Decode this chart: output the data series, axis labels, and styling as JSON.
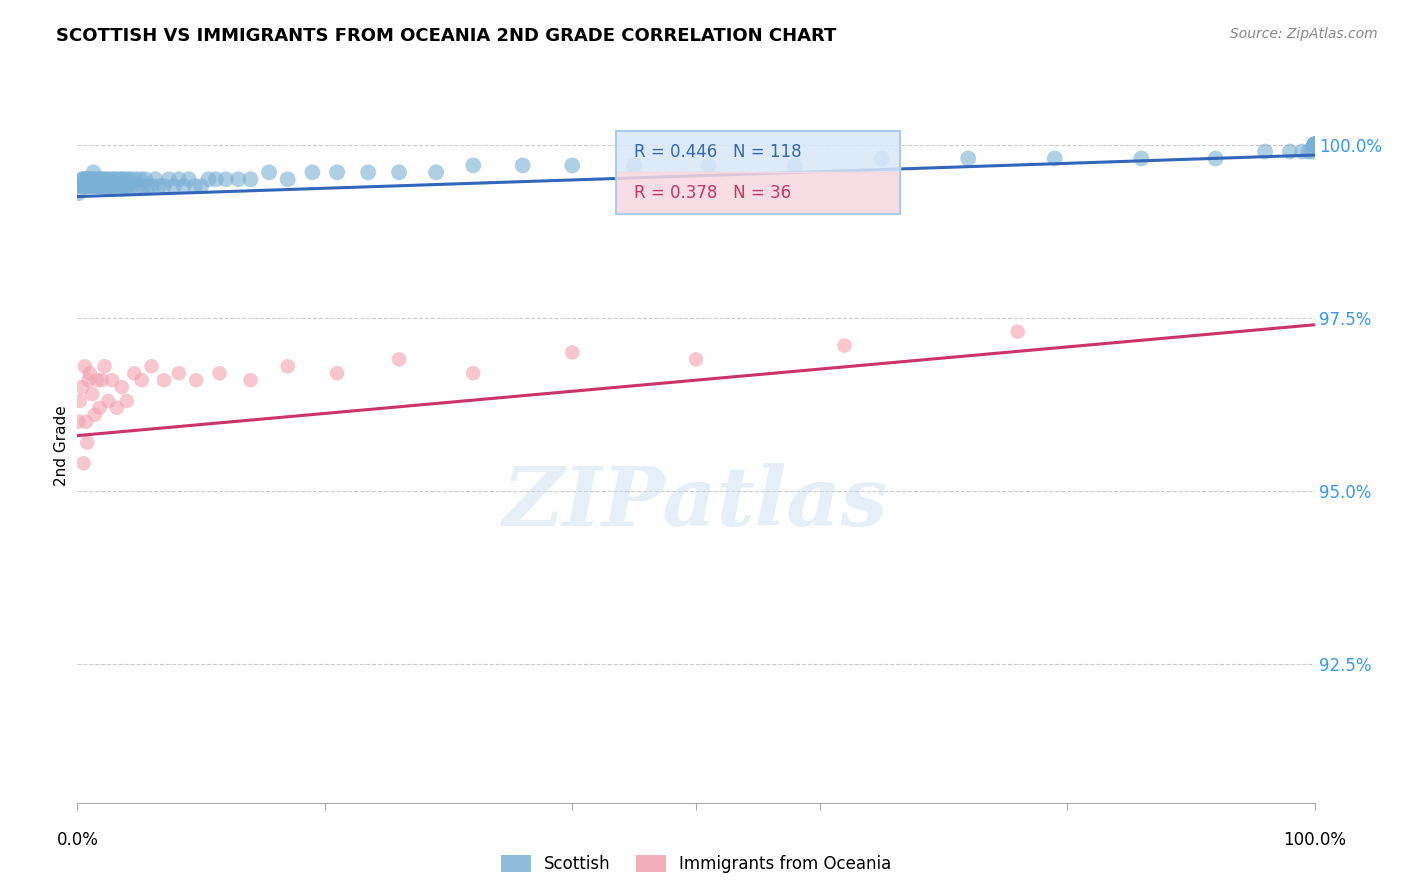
{
  "title": "SCOTTISH VS IMMIGRANTS FROM OCEANIA 2ND GRADE CORRELATION CHART",
  "source": "Source: ZipAtlas.com",
  "ylabel": "2nd Grade",
  "watermark": "ZIPatlas",
  "legend_scottish_label": "Scottish",
  "legend_oceania_label": "Immigrants from Oceania",
  "R_scottish": 0.446,
  "N_scottish": 118,
  "R_oceania": 0.378,
  "N_oceania": 36,
  "color_scottish": "#7BAFD4",
  "color_oceania": "#F4A0B0",
  "color_line_scottish": "#3366BB",
  "color_line_oceania": "#CC3366",
  "scatter_alpha": 0.6,
  "xlim": [
    0.0,
    1.0
  ],
  "ylim": [
    0.905,
    1.008
  ],
  "yticks": [
    0.925,
    0.95,
    0.975,
    1.0
  ],
  "scottish_x": [
    0.001,
    0.002,
    0.003,
    0.004,
    0.005,
    0.005,
    0.006,
    0.006,
    0.007,
    0.007,
    0.008,
    0.008,
    0.009,
    0.009,
    0.01,
    0.01,
    0.011,
    0.012,
    0.013,
    0.013,
    0.014,
    0.015,
    0.016,
    0.016,
    0.017,
    0.018,
    0.018,
    0.019,
    0.02,
    0.02,
    0.021,
    0.022,
    0.023,
    0.024,
    0.025,
    0.026,
    0.027,
    0.028,
    0.029,
    0.03,
    0.031,
    0.032,
    0.033,
    0.034,
    0.035,
    0.036,
    0.037,
    0.038,
    0.039,
    0.04,
    0.041,
    0.042,
    0.043,
    0.045,
    0.047,
    0.049,
    0.051,
    0.053,
    0.055,
    0.057,
    0.06,
    0.063,
    0.066,
    0.07,
    0.074,
    0.078,
    0.082,
    0.086,
    0.09,
    0.095,
    0.1,
    0.106,
    0.112,
    0.12,
    0.13,
    0.14,
    0.155,
    0.17,
    0.19,
    0.21,
    0.235,
    0.26,
    0.29,
    0.32,
    0.36,
    0.4,
    0.45,
    0.51,
    0.58,
    0.65,
    0.72,
    0.79,
    0.86,
    0.92,
    0.96,
    0.98,
    0.99,
    0.995,
    0.998,
    1.0,
    1.0,
    1.0,
    1.0,
    1.0,
    1.0,
    1.0,
    1.0,
    1.0,
    1.0,
    1.0,
    1.0,
    1.0,
    1.0,
    1.0,
    1.0,
    1.0,
    1.0,
    1.0
  ],
  "scottish_y": [
    0.993,
    0.994,
    0.994,
    0.995,
    0.994,
    0.995,
    0.994,
    0.995,
    0.994,
    0.995,
    0.994,
    0.995,
    0.994,
    0.995,
    0.994,
    0.995,
    0.995,
    0.994,
    0.995,
    0.996,
    0.994,
    0.995,
    0.994,
    0.995,
    0.994,
    0.994,
    0.995,
    0.995,
    0.994,
    0.995,
    0.994,
    0.995,
    0.994,
    0.995,
    0.994,
    0.995,
    0.994,
    0.994,
    0.995,
    0.995,
    0.994,
    0.995,
    0.994,
    0.994,
    0.995,
    0.995,
    0.994,
    0.995,
    0.994,
    0.994,
    0.995,
    0.994,
    0.995,
    0.994,
    0.995,
    0.994,
    0.995,
    0.994,
    0.995,
    0.994,
    0.994,
    0.995,
    0.994,
    0.994,
    0.995,
    0.994,
    0.995,
    0.994,
    0.995,
    0.994,
    0.994,
    0.995,
    0.995,
    0.995,
    0.995,
    0.995,
    0.996,
    0.995,
    0.996,
    0.996,
    0.996,
    0.996,
    0.996,
    0.997,
    0.997,
    0.997,
    0.997,
    0.997,
    0.997,
    0.998,
    0.998,
    0.998,
    0.998,
    0.998,
    0.999,
    0.999,
    0.999,
    0.999,
    0.999,
    1.0,
    1.0,
    1.0,
    1.0,
    1.0,
    1.0,
    1.0,
    1.0,
    1.0,
    1.0,
    1.0,
    1.0,
    1.0,
    1.0,
    1.0,
    1.0,
    1.0,
    1.0,
    1.0
  ],
  "oceania_x": [
    0.001,
    0.002,
    0.004,
    0.005,
    0.006,
    0.007,
    0.008,
    0.009,
    0.01,
    0.012,
    0.014,
    0.016,
    0.018,
    0.02,
    0.022,
    0.025,
    0.028,
    0.032,
    0.036,
    0.04,
    0.046,
    0.052,
    0.06,
    0.07,
    0.082,
    0.096,
    0.115,
    0.14,
    0.17,
    0.21,
    0.26,
    0.32,
    0.4,
    0.5,
    0.62,
    0.76
  ],
  "oceania_y": [
    0.96,
    0.963,
    0.965,
    0.954,
    0.968,
    0.96,
    0.957,
    0.966,
    0.967,
    0.964,
    0.961,
    0.966,
    0.962,
    0.966,
    0.968,
    0.963,
    0.966,
    0.962,
    0.965,
    0.963,
    0.967,
    0.966,
    0.968,
    0.966,
    0.967,
    0.966,
    0.967,
    0.966,
    0.968,
    0.967,
    0.969,
    0.967,
    0.97,
    0.969,
    0.971,
    0.973
  ],
  "scatter_size_scottish": 130,
  "scatter_size_oceania": 110,
  "trendline_scottish_x0": 0.0,
  "trendline_scottish_y0": 0.9925,
  "trendline_scottish_x1": 1.0,
  "trendline_scottish_y1": 0.9985,
  "trendline_oceania_x0": 0.0,
  "trendline_oceania_y0": 0.958,
  "trendline_oceania_x1": 1.0,
  "trendline_oceania_y1": 0.974
}
